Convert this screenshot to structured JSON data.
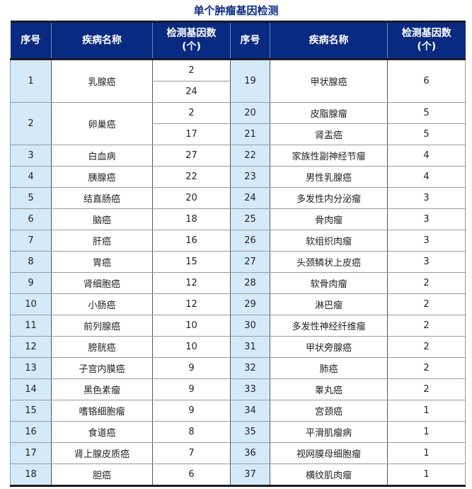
{
  "title": "单个肿瘤基因检测",
  "headers": [
    "序号",
    "疾病名称",
    "检测基因数\n(个)",
    "序号",
    "疾病名称",
    "检测基因数\n(个)"
  ],
  "colors": {
    "header_bg": "#082a80",
    "index_bg": "#d4eaf8",
    "title": "#0e2f86"
  },
  "left": [
    {
      "no": "1",
      "name": "乳腺癌",
      "counts": [
        "2",
        "24"
      ]
    },
    {
      "no": "2",
      "name": "卵巢癌",
      "counts": [
        "2",
        "17"
      ]
    },
    {
      "no": "3",
      "name": "白血病",
      "counts": [
        "27"
      ]
    },
    {
      "no": "4",
      "name": "胰腺癌",
      "counts": [
        "22"
      ]
    },
    {
      "no": "5",
      "name": "结直肠癌",
      "counts": [
        "20"
      ]
    },
    {
      "no": "6",
      "name": "脑癌",
      "counts": [
        "18"
      ]
    },
    {
      "no": "7",
      "name": "肝癌",
      "counts": [
        "16"
      ]
    },
    {
      "no": "8",
      "name": "胃癌",
      "counts": [
        "15"
      ]
    },
    {
      "no": "9",
      "name": "肾细胞癌",
      "counts": [
        "12"
      ]
    },
    {
      "no": "10",
      "name": "小肠癌",
      "counts": [
        "12"
      ]
    },
    {
      "no": "11",
      "name": "前列腺癌",
      "counts": [
        "10"
      ]
    },
    {
      "no": "12",
      "name": "膀胱癌",
      "counts": [
        "10"
      ]
    },
    {
      "no": "13",
      "name": "子宫内膜癌",
      "counts": [
        "9"
      ]
    },
    {
      "no": "14",
      "name": "黑色素瘤",
      "counts": [
        "9"
      ]
    },
    {
      "no": "15",
      "name": "嗜铬细胞瘤",
      "counts": [
        "9"
      ]
    },
    {
      "no": "16",
      "name": "食道癌",
      "counts": [
        "8"
      ]
    },
    {
      "no": "17",
      "name": "肾上腺皮质癌",
      "counts": [
        "7"
      ]
    },
    {
      "no": "18",
      "name": "胆癌",
      "counts": [
        "6"
      ]
    }
  ],
  "right": [
    {
      "no": "19",
      "name": "甲状腺癌",
      "count": "6"
    },
    {
      "no": "20",
      "name": "皮脂腺瘤",
      "count": "5"
    },
    {
      "no": "21",
      "name": "肾盂癌",
      "count": "5"
    },
    {
      "no": "22",
      "name": "家族性副神经节瘤",
      "count": "4"
    },
    {
      "no": "23",
      "name": "男性乳腺癌",
      "count": "4"
    },
    {
      "no": "24",
      "name": "多发性内分泌瘤",
      "count": "3"
    },
    {
      "no": "25",
      "name": "骨肉瘤",
      "count": "3"
    },
    {
      "no": "26",
      "name": "软组织肉瘤",
      "count": "3"
    },
    {
      "no": "27",
      "name": "头颈鳞状上皮癌",
      "count": "3"
    },
    {
      "no": "28",
      "name": "软骨肉瘤",
      "count": "2"
    },
    {
      "no": "29",
      "name": "淋巴瘤",
      "count": "2"
    },
    {
      "no": "30",
      "name": "多发性神经纤维瘤",
      "count": "2"
    },
    {
      "no": "31",
      "name": "甲状旁腺癌",
      "count": "2"
    },
    {
      "no": "32",
      "name": "肺癌",
      "count": "2"
    },
    {
      "no": "33",
      "name": "睾丸癌",
      "count": "2"
    },
    {
      "no": "34",
      "name": "宫颈癌",
      "count": "1"
    },
    {
      "no": "35",
      "name": "平滑肌瘤病",
      "count": "1"
    },
    {
      "no": "36",
      "name": "视网膜母细胞瘤",
      "count": "1"
    },
    {
      "no": "37",
      "name": "横纹肌肉瘤",
      "count": "1"
    }
  ]
}
